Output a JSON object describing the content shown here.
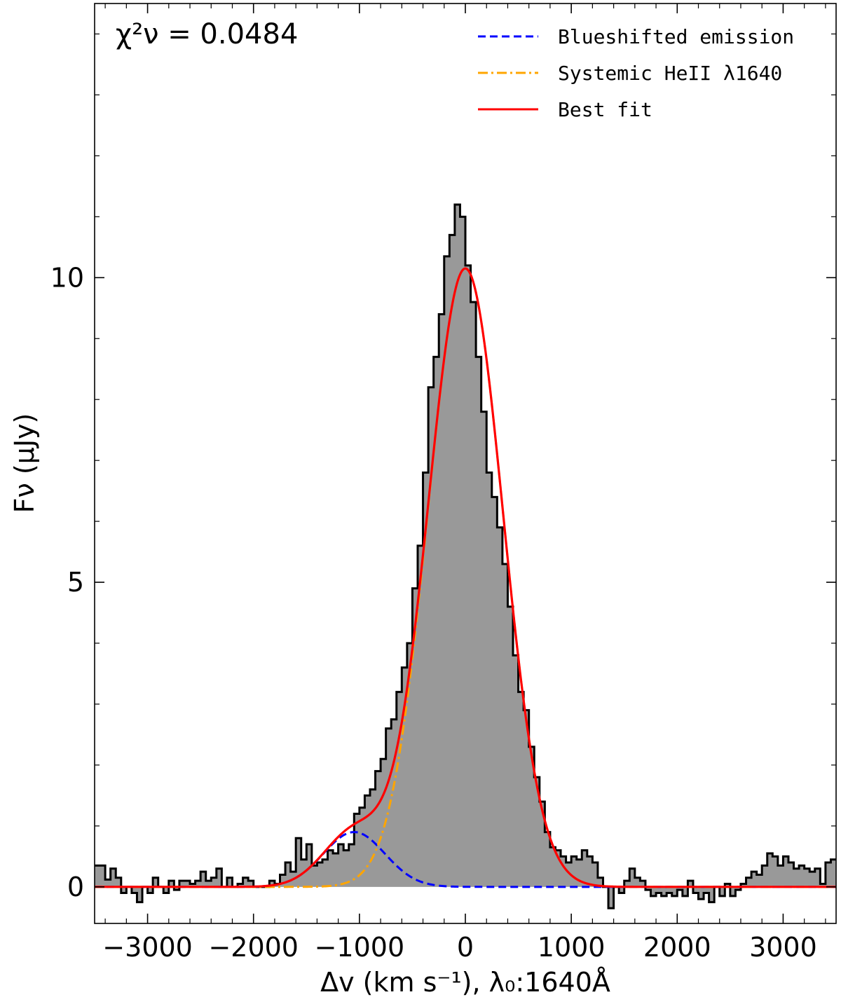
{
  "chart_data": {
    "type": "step",
    "xlabel": "Δv (km s⁻¹), λ₀:1640Å",
    "ylabel": "Fν (μJy)",
    "annotation": "χ²ν = 0.0484",
    "xlim": [
      -3500,
      3500
    ],
    "ylim": [
      -0.6,
      14.5
    ],
    "x_ticks": [
      -3000,
      -2000,
      -1000,
      0,
      1000,
      2000,
      3000
    ],
    "x_tick_labels": [
      "−3000",
      "−2000",
      "−1000",
      "0",
      "1000",
      "2000",
      "3000"
    ],
    "y_ticks": [
      0,
      5,
      10
    ],
    "y_tick_labels": [
      "0",
      "5",
      "10"
    ],
    "legend_position": "top-right",
    "legend": [
      {
        "label": "Blueshifted emission",
        "color": "#0000ff",
        "style": "dashed"
      },
      {
        "label": "Systemic HeII λ1640",
        "color": "#ffa500",
        "style": "dashdot"
      },
      {
        "label": "Best fit",
        "color": "#ff0000",
        "style": "solid"
      }
    ],
    "data_step": {
      "x_start": -3500,
      "bin_width": 50,
      "values": [
        0.35,
        0.35,
        0.12,
        0.3,
        0.15,
        -0.1,
        0.0,
        -0.1,
        -0.25,
        0.0,
        -0.1,
        0.15,
        0.0,
        -0.1,
        0.1,
        -0.05,
        0.1,
        0.1,
        0.05,
        0.1,
        0.25,
        0.1,
        0.15,
        0.3,
        0.0,
        0.15,
        0.0,
        0.05,
        0.15,
        0.1,
        0.0,
        0.0,
        0.0,
        0.1,
        0.05,
        0.2,
        0.4,
        0.25,
        0.8,
        0.45,
        0.7,
        0.35,
        0.4,
        0.45,
        0.6,
        0.55,
        0.7,
        0.6,
        0.7,
        1.2,
        1.3,
        1.5,
        1.6,
        1.9,
        2.1,
        2.6,
        2.75,
        3.2,
        3.6,
        4.0,
        4.9,
        5.6,
        6.8,
        8.2,
        8.7,
        9.4,
        10.35,
        10.7,
        11.2,
        11.0,
        10.2,
        9.6,
        8.7,
        7.8,
        6.8,
        6.4,
        5.9,
        5.3,
        4.6,
        3.8,
        3.2,
        2.9,
        2.3,
        1.8,
        1.4,
        0.9,
        0.65,
        0.6,
        0.5,
        0.4,
        0.5,
        0.45,
        0.6,
        0.5,
        0.4,
        0.15,
        0.0,
        -0.35,
        0.0,
        -0.1,
        0.1,
        0.3,
        0.15,
        0.1,
        -0.05,
        -0.15,
        -0.1,
        -0.15,
        -0.1,
        -0.15,
        -0.05,
        -0.15,
        0.1,
        -0.1,
        -0.2,
        -0.1,
        -0.25,
        0.0,
        -0.15,
        0.05,
        -0.15,
        -0.05,
        0.05,
        0.15,
        0.25,
        0.2,
        0.35,
        0.55,
        0.5,
        0.35,
        0.5,
        0.4,
        0.3,
        0.35,
        0.3,
        0.25,
        0.3,
        0.05,
        0.4,
        0.45
      ]
    },
    "models": {
      "blueshifted": {
        "amplitude": 0.9,
        "center": -1050,
        "sigma": 290
      },
      "systemic": {
        "amplitude": 10.15,
        "center": 0,
        "sigma": 355
      }
    },
    "colors": {
      "fill": "#999999",
      "step_line": "#000000",
      "blueshifted": "#0000ff",
      "systemic": "#ffa500",
      "best_fit": "#ff0000"
    }
  }
}
